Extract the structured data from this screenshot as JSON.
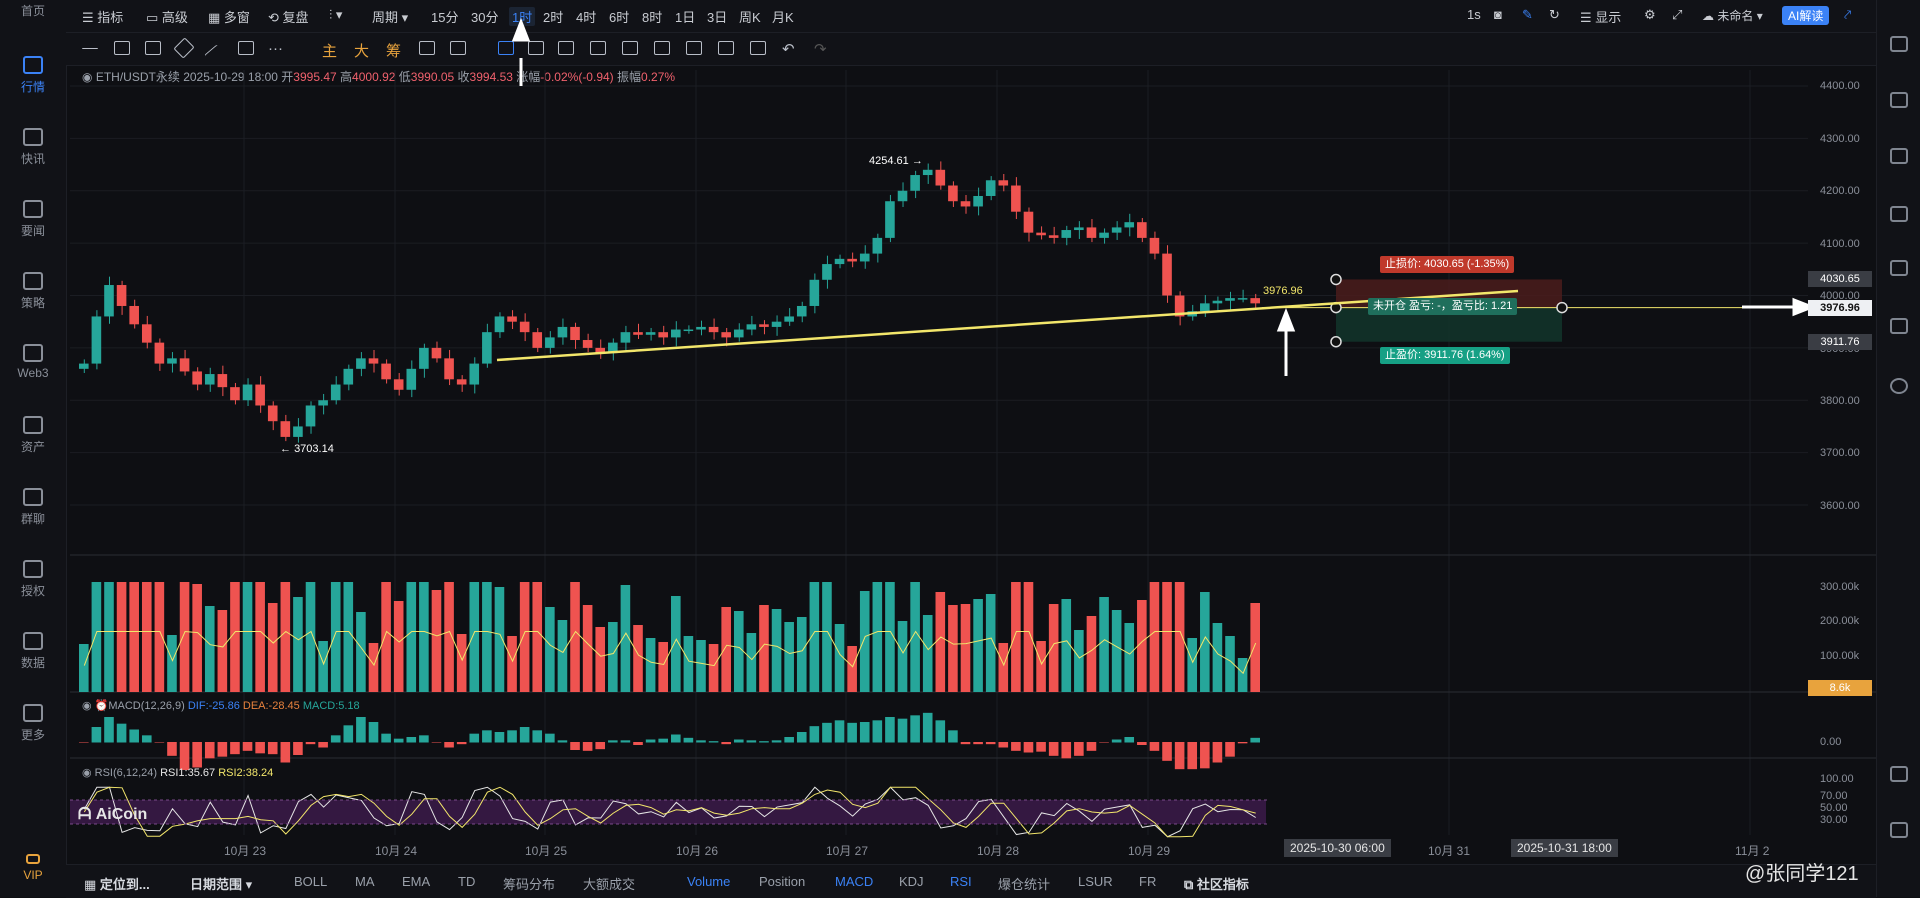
{
  "leftnav": [
    {
      "label": "首页",
      "icon": "home-icon"
    },
    {
      "label": "行情",
      "icon": "chart-bars-icon",
      "active": true
    },
    {
      "label": "快讯",
      "icon": "news-flash-icon"
    },
    {
      "label": "要闻",
      "icon": "headline-icon"
    },
    {
      "label": "策略",
      "icon": "strategy-icon"
    },
    {
      "label": "Web3",
      "icon": "web3-icon"
    },
    {
      "label": "资产",
      "icon": "wallet-icon"
    },
    {
      "label": "群聊",
      "icon": "chat-icon"
    },
    {
      "label": "授权",
      "icon": "key-icon"
    },
    {
      "label": "数据",
      "icon": "data-icon"
    },
    {
      "label": "更多",
      "icon": "more-grid-icon"
    },
    {
      "label": "VIP",
      "icon": "vip-crown-icon"
    }
  ],
  "topbar": {
    "indicators": "指标",
    "advanced": "高级",
    "multiwin": "多窗",
    "replay": "复盘",
    "period": "周期",
    "periods": [
      "15分",
      "30分",
      "1时",
      "2时",
      "4时",
      "6时",
      "8时",
      "1日",
      "3日",
      "周K",
      "月K"
    ],
    "selected_period": "1时",
    "right": {
      "interval": "1s",
      "display": "显示",
      "unnamed": "未命名",
      "ai": "AI解读"
    }
  },
  "drawbar": {
    "labels": [
      "主",
      "大",
      "筹"
    ]
  },
  "info": {
    "symbol": "ETH/USDT永续",
    "time": "2025-10-29 18:00",
    "open_label": "开",
    "open": "3995.47",
    "high_label": "高",
    "high": "4000.92",
    "low_label": "低",
    "low": "3990.05",
    "close_label": "收",
    "close": "3994.53",
    "change_label": "涨幅",
    "change": "-0.02%(-0.94)",
    "amp_label": "振幅",
    "amp": "0.27%"
  },
  "chart_data": {
    "type": "candlestick",
    "symbol": "ETH/USDT永续",
    "interval": "1h",
    "price_axis": [
      4400,
      4300,
      4200,
      4100,
      4000,
      3900,
      3800,
      3700,
      3600
    ],
    "price_axis_labels": [
      "4400.00",
      "4300.00",
      "4200.00",
      "4100.00",
      "4000.00",
      "3900.00",
      "3800.00",
      "3700.00",
      "3600.00"
    ],
    "x_labels": [
      "10月 23",
      "10月 24",
      "10月 25",
      "10月 26",
      "10月 27",
      "10月 28",
      "10月 29",
      "10月 31",
      "11月 2"
    ],
    "x_highlights": [
      "2025-10-30 06:00",
      "2025-10-31 18:00"
    ],
    "annotations": {
      "high": "4254.61",
      "low": "3703.14",
      "last": "3976.96"
    },
    "closes": [
      3870,
      3960,
      4020,
      3980,
      3945,
      3910,
      3870,
      3880,
      3855,
      3830,
      3850,
      3825,
      3800,
      3830,
      3790,
      3760,
      3730,
      3750,
      3790,
      3800,
      3830,
      3860,
      3880,
      3870,
      3840,
      3820,
      3860,
      3900,
      3880,
      3840,
      3830,
      3870,
      3930,
      3960,
      3950,
      3930,
      3900,
      3920,
      3940,
      3915,
      3900,
      3890,
      3910,
      3930,
      3925,
      3930,
      3920,
      3935,
      3935,
      3940,
      3930,
      3920,
      3935,
      3945,
      3940,
      3950,
      3960,
      3980,
      4030,
      4060,
      4070,
      4065,
      4080,
      4110,
      4180,
      4200,
      4230,
      4240,
      4210,
      4180,
      4170,
      4190,
      4220,
      4210,
      4160,
      4120,
      4115,
      4110,
      4125,
      4130,
      4110,
      4120,
      4130,
      4140,
      4110,
      4080,
      4000,
      3960,
      3970,
      3985,
      3990,
      3995,
      3995,
      3985
    ],
    "stop_loss": {
      "label": "止损价: 4030.65 (-1.35%)",
      "price": 4030.65
    },
    "take_profit": {
      "label": "止盈价: 3911.76 (1.64%)",
      "price": 3911.76
    },
    "entry": {
      "label": "未开仓 盈亏: -，盈亏比: 1.21",
      "price": 3976.96
    },
    "tag_labels": [
      "4030.65",
      "4000.00",
      "3976.96",
      "3911.76"
    ]
  },
  "volume": {
    "axis": [
      "300.00k",
      "200.00k",
      "100.00k"
    ],
    "current": "8.6k"
  },
  "macd": {
    "title": "MACD(12,26,9)",
    "dif": "DIF:-25.86",
    "dea": "DEA:-28.45",
    "macd": "MACD:5.18",
    "axis": "0.00"
  },
  "rsi": {
    "title": "RSI(6,12,24)",
    "rsi1": "RSI1:35.67",
    "rsi2": "RSI2:38.24",
    "axis": [
      "100.00",
      "70.00",
      "50.00",
      "30.00"
    ]
  },
  "bottombar": {
    "locate": "定位到...",
    "range": "日期范围",
    "items": [
      "BOLL",
      "MA",
      "EMA",
      "TD",
      "筹码分布",
      "大额成交",
      "Volume",
      "Position",
      "MACD",
      "KDJ",
      "RSI",
      "爆仓统计",
      "LSUR",
      "FR",
      "社区指标"
    ],
    "active": [
      "Volume",
      "MACD",
      "RSI"
    ]
  },
  "brand": "AiCoin",
  "watermark": "@张同学121",
  "colors": {
    "up": "#26a69a",
    "down": "#ef5350",
    "accent": "#3b82f6",
    "trend": "#f2e66b"
  }
}
